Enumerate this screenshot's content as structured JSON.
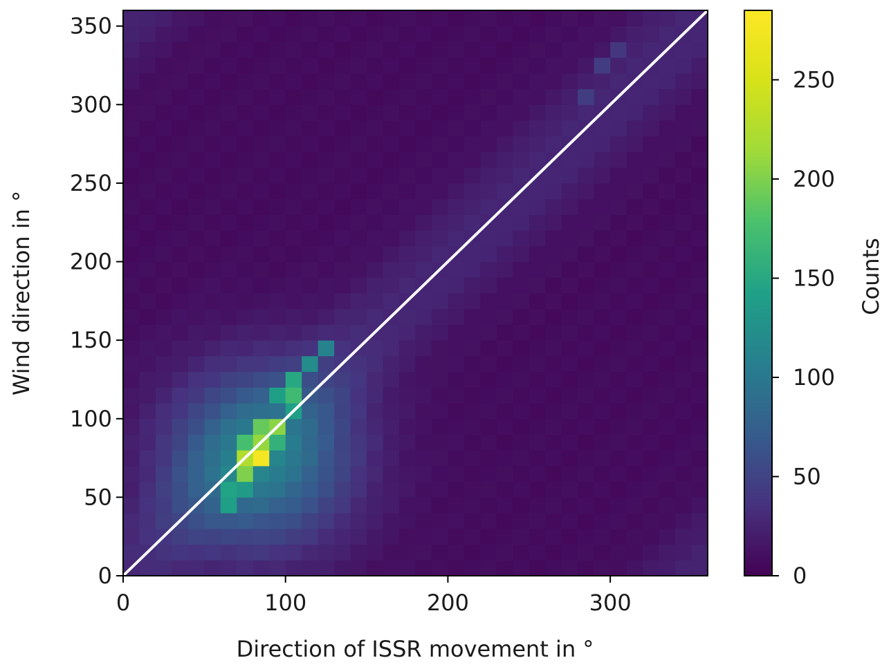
{
  "chart_data": {
    "type": "heatmap",
    "title": "",
    "xlabel": "Direction of ISSR movement in °",
    "ylabel": "Wind direction in °",
    "xlim": [
      0,
      360
    ],
    "ylim": [
      0,
      360
    ],
    "xticks": [
      0,
      100,
      200,
      300
    ],
    "yticks": [
      0,
      50,
      100,
      150,
      200,
      250,
      300,
      350
    ],
    "bins": 36,
    "bin_width": 10,
    "colormap": "viridis",
    "colorbar": {
      "label": "Counts",
      "range": [
        0,
        285
      ],
      "ticks": [
        0,
        50,
        100,
        150,
        200,
        250
      ]
    },
    "reference_line": {
      "from": [
        0,
        0
      ],
      "to": [
        360,
        360
      ],
      "color": "#ffffff"
    },
    "values_note": "count estimates per 10° x 10° bin",
    "peak": {
      "x": 85,
      "y": 75,
      "count": 285
    },
    "background_count": 8,
    "ridges": [
      {
        "x": 85,
        "y": 75,
        "count": 277
      },
      {
        "x": 75,
        "y": 75,
        "count": 225
      },
      {
        "x": 85,
        "y": 85,
        "count": 210
      },
      {
        "x": 95,
        "y": 95,
        "count": 205
      },
      {
        "x": 75,
        "y": 65,
        "count": 200
      },
      {
        "x": 85,
        "y": 95,
        "count": 190
      },
      {
        "x": 75,
        "y": 85,
        "count": 175
      },
      {
        "x": 105,
        "y": 115,
        "count": 170
      },
      {
        "x": 95,
        "y": 85,
        "count": 160
      },
      {
        "x": 105,
        "y": 125,
        "count": 150
      },
      {
        "x": 65,
        "y": 55,
        "count": 145
      },
      {
        "x": 65,
        "y": 45,
        "count": 140
      },
      {
        "x": 95,
        "y": 115,
        "count": 140
      },
      {
        "x": 115,
        "y": 135,
        "count": 120
      },
      {
        "x": 125,
        "y": 145,
        "count": 110
      },
      {
        "x": 65,
        "y": 65,
        "count": 115
      },
      {
        "x": 75,
        "y": 55,
        "count": 135
      },
      {
        "x": 105,
        "y": 105,
        "count": 140
      },
      {
        "x": 285,
        "y": 305,
        "count": 45
      },
      {
        "x": 295,
        "y": 325,
        "count": 45
      },
      {
        "x": 305,
        "y": 335,
        "count": 40
      }
    ]
  }
}
